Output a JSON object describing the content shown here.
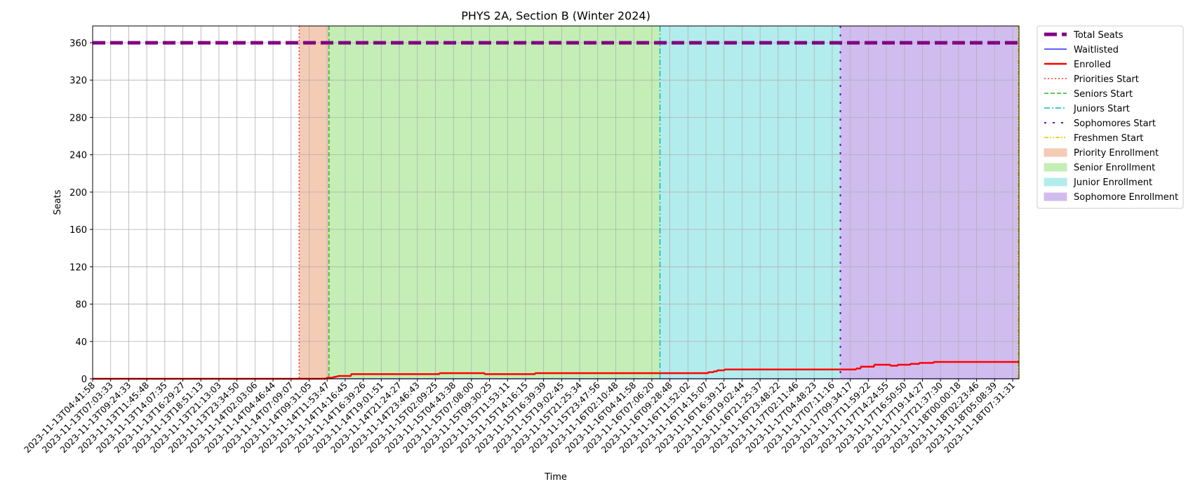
{
  "chart_data": {
    "type": "line",
    "title": "PHYS 2A, Section B (Winter 2024)",
    "xlabel": "Time",
    "ylabel": "Seats",
    "ylim": [
      0,
      378
    ],
    "yticks": [
      0,
      40,
      80,
      120,
      160,
      200,
      240,
      280,
      320,
      360
    ],
    "grid": true,
    "legend_position": "outside-right-top",
    "x_categories": [
      "2023-11-13T04:41:58",
      "2023-11-13T07:03:33",
      "2023-11-13T09:24:33",
      "2023-11-13T11:45:48",
      "2023-11-13T14:07:35",
      "2023-11-13T16:29:27",
      "2023-11-13T18:51:13",
      "2023-11-13T21:13:03",
      "2023-11-13T23:34:50",
      "2023-11-14T02:03:06",
      "2023-11-14T04:46:44",
      "2023-11-14T07:09:07",
      "2023-11-14T09:31:05",
      "2023-11-14T11:53:47",
      "2023-11-14T14:16:45",
      "2023-11-14T16:39:26",
      "2023-11-14T19:01:51",
      "2023-11-14T21:24:27",
      "2023-11-14T23:46:43",
      "2023-11-15T02:09:25",
      "2023-11-15T04:43:38",
      "2023-11-15T07:08:00",
      "2023-11-15T09:30:25",
      "2023-11-15T11:53:11",
      "2023-11-15T14:16:15",
      "2023-11-15T16:39:39",
      "2023-11-15T19:02:45",
      "2023-11-15T21:25:34",
      "2023-11-15T23:47:56",
      "2023-11-16T02:10:48",
      "2023-11-16T04:41:58",
      "2023-11-16T07:06:20",
      "2023-11-16T09:28:48",
      "2023-11-16T11:52:02",
      "2023-11-16T14:15:07",
      "2023-11-16T16:39:12",
      "2023-11-16T19:02:44",
      "2023-11-16T21:25:37",
      "2023-11-16T23:48:22",
      "2023-11-17T02:11:46",
      "2023-11-17T04:48:23",
      "2023-11-17T07:11:16",
      "2023-11-17T09:34:17",
      "2023-11-17T11:59:22",
      "2023-11-17T14:24:55",
      "2023-11-17T16:50:50",
      "2023-11-17T19:14:27",
      "2023-11-17T21:37:30",
      "2023-11-18T00:00:18",
      "2023-11-18T02:23:46",
      "2023-11-18T05:08:39",
      "2023-11-18T07:31:31"
    ],
    "series": [
      {
        "name": "Total Seats",
        "color": "#800080",
        "style": "dashed-thick",
        "x": [
          0,
          51.35
        ],
        "y": [
          360,
          360
        ]
      },
      {
        "name": "Waitlisted",
        "color": "#0000ff",
        "style": "solid-thin",
        "x": [
          0,
          51.35
        ],
        "y": [
          0,
          0
        ]
      },
      {
        "name": "Enrolled",
        "color": "#ff0000",
        "style": "solid",
        "x": [
          0,
          12.9,
          13.0,
          13.25,
          13.4,
          13.45,
          13.65,
          13.75,
          14.3,
          14.35,
          15.5,
          19.2,
          19.25,
          21.7,
          21.75,
          24.5,
          24.55,
          34.1,
          34.15,
          34.4,
          34.45,
          34.6,
          34.65,
          35.0,
          35.05,
          42.3,
          42.35,
          42.55,
          42.6,
          43.3,
          43.35,
          44.2,
          44.25,
          44.6,
          44.65,
          45.3,
          45.35,
          45.8,
          45.85,
          46.6,
          46.65,
          51.35
        ],
        "y": [
          0,
          0,
          1,
          1,
          2,
          2,
          3,
          3,
          3,
          5,
          5,
          5,
          6,
          6,
          5,
          5,
          6,
          6,
          7,
          7,
          8,
          8,
          9,
          9,
          10,
          10,
          11,
          11,
          13,
          13,
          15,
          15,
          14,
          14,
          15,
          15,
          16,
          16,
          17,
          17,
          18,
          18
        ]
      }
    ],
    "vlines": [
      {
        "name": "Priorities Start",
        "x": 11.45,
        "color": "#ff3333",
        "dash": "dotted"
      },
      {
        "name": "Seniors Start",
        "x": 13.1,
        "color": "#22bb22",
        "dash": "dashed"
      },
      {
        "name": "Juniors Start",
        "x": 31.45,
        "color": "#00bfbf",
        "dash": "dashdot"
      },
      {
        "name": "Sophomores Start",
        "x": 41.45,
        "color": "#6a0dad",
        "dash": "loosedash"
      },
      {
        "name": "Freshmen Start",
        "x": 51.3,
        "color": "#e6c200",
        "dash": "dashdotdot"
      }
    ],
    "spans": [
      {
        "name": "Priority Enrollment",
        "x0": 11.45,
        "x1": 13.1,
        "color": "#f4cbb5"
      },
      {
        "name": "Senior Enrollment",
        "x0": 13.1,
        "x1": 31.45,
        "color": "#c4eeb5"
      },
      {
        "name": "Junior Enrollment",
        "x0": 31.45,
        "x1": 41.45,
        "color": "#b3ecec"
      },
      {
        "name": "Sophomore Enrollment",
        "x0": 41.45,
        "x1": 51.3,
        "color": "#d0bcef"
      }
    ],
    "legend": [
      "Total Seats",
      "Waitlisted",
      "Enrolled",
      "Priorities Start",
      "Seniors Start",
      "Juniors Start",
      "Sophomores Start",
      "Freshmen Start",
      "Priority Enrollment",
      "Senior Enrollment",
      "Junior Enrollment",
      "Sophomore Enrollment"
    ]
  }
}
